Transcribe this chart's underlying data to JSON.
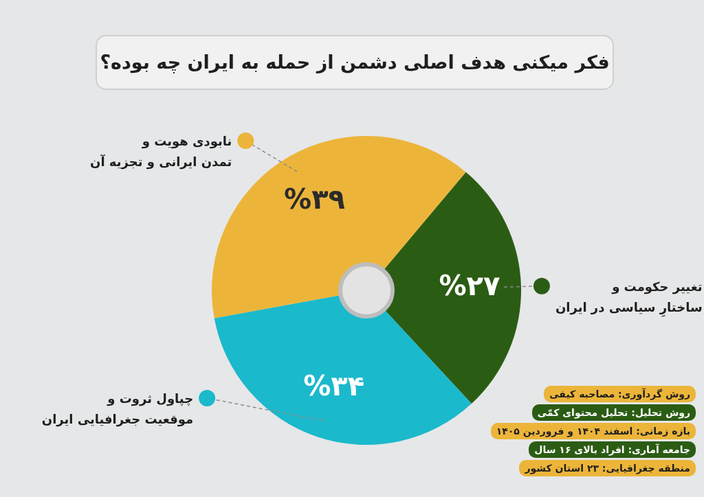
{
  "chart_data": {
    "type": "pie",
    "legend": "left",
    "title": "فکر میکنی هدف اصلی دشمن از حمله به ایران چه بوده؟",
    "categories": [
      "تغییر حکومت و\nساختارِ سیاسی در ایران",
      "چپاول ثروت و\nموقعیت جغرافیایی ایران",
      "نابودی هویت و\nتمدن ایرانی و تجزیه آن"
    ],
    "values": [
      27,
      34,
      39
    ],
    "colors": [
      "#2b5c14",
      "#1bb9cc",
      "#ecb53a"
    ],
    "value_labels": [
      "%۲۷",
      "%۳۴",
      "%۳۹"
    ],
    "annotations": [
      "روش گردآوری: مصاحبه کیفی",
      "روش تحلیل: تحلیل محتوای کمّی",
      "بازه زمانی: اسفند ۱۴۰۴ و فروردین ۱۴۰۵",
      "جامعه آماری: افراد بالای ۱۶ سال",
      "منطقه جغرافیایی: ۲۳ استان کشور"
    ]
  }
}
